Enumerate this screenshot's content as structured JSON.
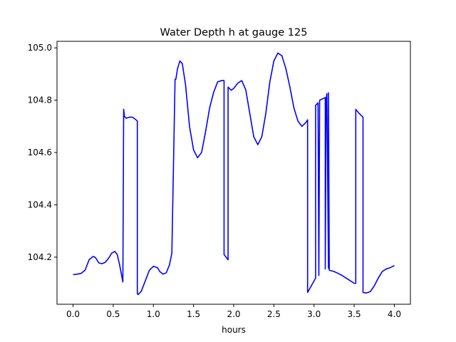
{
  "chart_data": {
    "type": "line",
    "title": "Water Depth h at gauge 125",
    "xlabel": "hours",
    "ylabel": "",
    "xlim": [
      -0.2,
      4.2
    ],
    "ylim": [
      104.02,
      105.025
    ],
    "xticks": [
      0.0,
      0.5,
      1.0,
      1.5,
      2.0,
      2.5,
      3.0,
      3.5,
      4.0
    ],
    "xtick_labels": [
      "0.0",
      "0.5",
      "1.0",
      "1.5",
      "2.0",
      "2.5",
      "3.0",
      "3.5",
      "4.0"
    ],
    "yticks": [
      104.2,
      104.4,
      104.6,
      104.8,
      105.0
    ],
    "ytick_labels": [
      "104.2",
      "104.4",
      "104.6",
      "104.8",
      "105.0"
    ],
    "grid": false,
    "series": [
      {
        "color": "#0000ff",
        "x": [
          0.0,
          0.05,
          0.1,
          0.15,
          0.2,
          0.25,
          0.28,
          0.32,
          0.36,
          0.4,
          0.44,
          0.48,
          0.52,
          0.55,
          0.58,
          0.62,
          0.63,
          0.64,
          0.66,
          0.7,
          0.74,
          0.78,
          0.8,
          0.8,
          0.81,
          0.85,
          0.9,
          0.95,
          1.0,
          1.05,
          1.08,
          1.12,
          1.16,
          1.2,
          1.23,
          1.27,
          1.28,
          1.3,
          1.33,
          1.36,
          1.4,
          1.45,
          1.5,
          1.55,
          1.6,
          1.65,
          1.7,
          1.75,
          1.8,
          1.85,
          1.88,
          1.88,
          1.93,
          1.93,
          1.97,
          2.0,
          2.05,
          2.1,
          2.15,
          2.2,
          2.25,
          2.3,
          2.35,
          2.4,
          2.45,
          2.5,
          2.55,
          2.6,
          2.65,
          2.7,
          2.75,
          2.8,
          2.85,
          2.9,
          2.92,
          2.92,
          3.02,
          3.02,
          3.05,
          3.06,
          3.07,
          3.14,
          3.14,
          3.15,
          3.16,
          3.18,
          3.18,
          3.19,
          3.25,
          3.3,
          3.35,
          3.4,
          3.45,
          3.5,
          3.52,
          3.52,
          3.56,
          3.61,
          3.61,
          3.65,
          3.7,
          3.75,
          3.8,
          3.85,
          3.9,
          3.95,
          4.0
        ],
        "y": [
          104.133,
          104.135,
          104.138,
          104.15,
          104.19,
          104.203,
          104.198,
          104.178,
          104.175,
          104.18,
          104.195,
          104.215,
          104.222,
          104.21,
          104.17,
          104.105,
          104.765,
          104.738,
          104.731,
          104.735,
          104.735,
          104.726,
          104.72,
          104.06,
          104.057,
          104.07,
          104.11,
          104.15,
          104.165,
          104.16,
          104.145,
          104.135,
          104.14,
          104.17,
          104.215,
          104.88,
          104.88,
          104.92,
          104.95,
          104.94,
          104.86,
          104.7,
          104.61,
          104.58,
          104.6,
          104.68,
          104.77,
          104.83,
          104.87,
          104.875,
          104.875,
          104.21,
          104.19,
          104.85,
          104.838,
          104.845,
          104.865,
          104.875,
          104.84,
          104.75,
          104.66,
          104.63,
          104.66,
          104.75,
          104.87,
          104.95,
          104.98,
          104.97,
          104.92,
          104.85,
          104.77,
          104.72,
          104.7,
          104.715,
          104.725,
          104.065,
          104.12,
          104.78,
          104.79,
          104.13,
          104.8,
          104.81,
          104.155,
          104.8,
          104.825,
          104.158,
          104.828,
          104.15,
          104.145,
          104.138,
          104.13,
          104.12,
          104.11,
          104.1,
          104.1,
          104.765,
          104.75,
          104.735,
          104.065,
          104.063,
          104.068,
          104.09,
          104.12,
          104.145,
          104.155,
          104.16,
          104.168
        ]
      }
    ]
  }
}
